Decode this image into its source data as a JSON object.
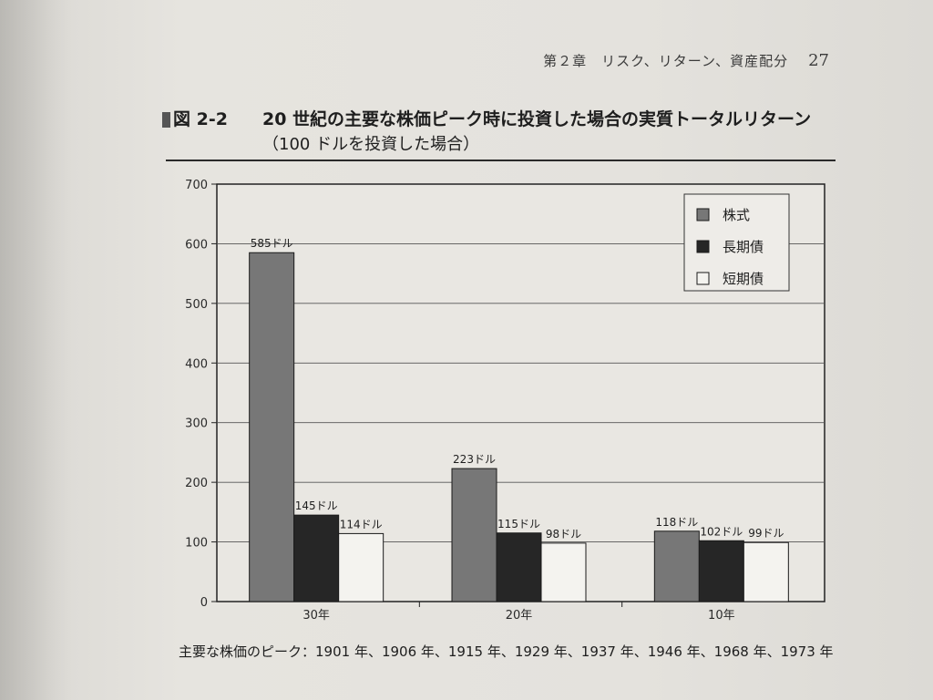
{
  "header": {
    "chapter": "第２章　リスク、リターン、資産配分",
    "page_number": "27"
  },
  "figure": {
    "label": "図 2-2",
    "title": "20 世紀の主要な株価ピーク時に投資した場合の実質トータルリターン",
    "subtitle": "（100 ドルを投資した場合）",
    "footnote": "主要な株価のピーク：1901 年、1906 年、1915 年、1929 年、1937 年、1946 年、1968 年、1973 年"
  },
  "colors": {
    "stocks": "#777777",
    "long_bonds": "#262626",
    "short_bills": "#f4f3ef",
    "plot_bg": "#e9e7e2",
    "grid": "#555555"
  },
  "chart_data": {
    "type": "bar",
    "categories": [
      "30年",
      "20年",
      "10年"
    ],
    "series": [
      {
        "name": "株式",
        "values": [
          585,
          223,
          118
        ],
        "labels": [
          "585ドル",
          "223ドル",
          "118ドル"
        ]
      },
      {
        "name": "長期債",
        "values": [
          145,
          115,
          102
        ],
        "labels": [
          "145ドル",
          "115ドル",
          "102ドル"
        ]
      },
      {
        "name": "短期債",
        "values": [
          114,
          98,
          99
        ],
        "labels": [
          "114ドル",
          "98ドル",
          "99ドル"
        ]
      }
    ],
    "ylim": [
      0,
      700
    ],
    "yticks": [
      0,
      100,
      200,
      300,
      400,
      500,
      600,
      700
    ],
    "grid": true,
    "legend_position": "top-right"
  }
}
